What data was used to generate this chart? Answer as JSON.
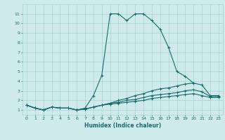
{
  "xlabel": "Humidex (Indice chaleur)",
  "ylabel": "",
  "background_color": "#ceeaea",
  "grid_color": "#a8d4d4",
  "line_color": "#1a6b6b",
  "xlim": [
    -0.5,
    23.5
  ],
  "ylim": [
    0.5,
    12.0
  ],
  "xticks": [
    0,
    1,
    2,
    3,
    4,
    5,
    6,
    7,
    8,
    9,
    10,
    11,
    12,
    13,
    14,
    15,
    16,
    17,
    18,
    19,
    20,
    21,
    22,
    23
  ],
  "yticks": [
    1,
    2,
    3,
    4,
    5,
    6,
    7,
    8,
    9,
    10,
    11
  ],
  "series": [
    {
      "x": [
        0,
        1,
        2,
        3,
        4,
        5,
        6,
        7,
        8,
        9,
        10,
        11,
        12,
        13,
        14,
        15,
        16,
        17,
        18,
        19,
        20
      ],
      "y": [
        1.5,
        1.2,
        1.0,
        1.3,
        1.2,
        1.2,
        1.0,
        1.2,
        2.5,
        4.6,
        11.0,
        11.0,
        10.3,
        11.0,
        11.0,
        10.3,
        9.4,
        7.5,
        5.0,
        4.5,
        3.8
      ]
    },
    {
      "x": [
        0,
        1,
        2,
        3,
        4,
        5,
        6,
        7,
        8,
        9,
        10,
        11,
        12,
        13,
        14,
        15,
        16,
        17,
        18,
        19,
        20,
        21,
        22,
        23
      ],
      "y": [
        1.5,
        1.2,
        1.0,
        1.3,
        1.2,
        1.2,
        1.0,
        1.1,
        1.3,
        1.5,
        1.7,
        2.0,
        2.2,
        2.5,
        2.7,
        3.0,
        3.2,
        3.3,
        3.5,
        3.7,
        3.8,
        3.6,
        2.5,
        2.5
      ]
    },
    {
      "x": [
        0,
        1,
        2,
        3,
        4,
        5,
        6,
        7,
        8,
        9,
        10,
        11,
        12,
        13,
        14,
        15,
        16,
        17,
        18,
        19,
        20,
        21,
        22,
        23
      ],
      "y": [
        1.5,
        1.2,
        1.0,
        1.3,
        1.2,
        1.2,
        1.0,
        1.1,
        1.3,
        1.5,
        1.7,
        1.8,
        2.0,
        2.1,
        2.3,
        2.5,
        2.6,
        2.7,
        2.8,
        3.0,
        3.1,
        2.9,
        2.4,
        2.4
      ]
    },
    {
      "x": [
        0,
        1,
        2,
        3,
        4,
        5,
        6,
        7,
        8,
        9,
        10,
        11,
        12,
        13,
        14,
        15,
        16,
        17,
        18,
        19,
        20,
        21,
        22,
        23
      ],
      "y": [
        1.5,
        1.2,
        1.0,
        1.3,
        1.2,
        1.2,
        1.0,
        1.1,
        1.3,
        1.5,
        1.6,
        1.7,
        1.8,
        1.9,
        2.0,
        2.2,
        2.3,
        2.4,
        2.5,
        2.6,
        2.7,
        2.5,
        2.3,
        2.3
      ]
    }
  ]
}
